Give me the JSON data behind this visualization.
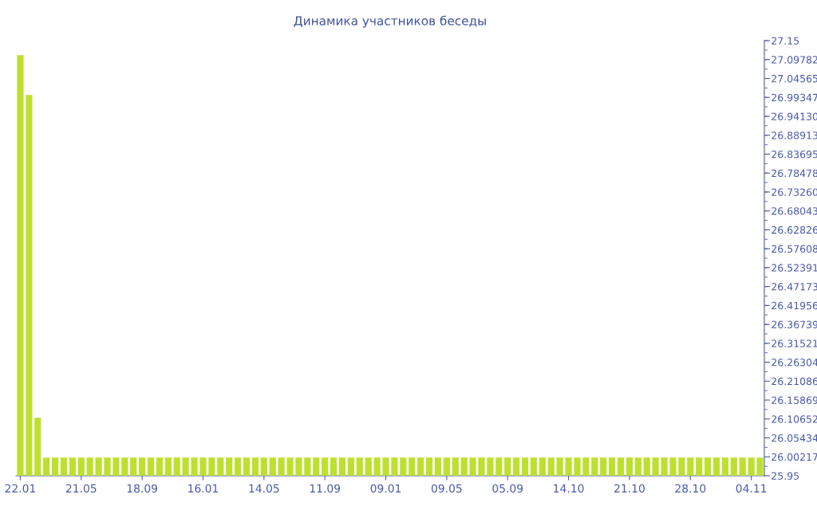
{
  "chart_data": {
    "type": "bar",
    "title": "Динамика участников беседы",
    "categories": [
      "22.01",
      null,
      null,
      null,
      null,
      null,
      null,
      "21.05",
      null,
      null,
      null,
      null,
      null,
      null,
      "18.09",
      null,
      null,
      null,
      null,
      null,
      null,
      "16.01",
      null,
      null,
      null,
      null,
      null,
      null,
      "14.05",
      null,
      null,
      null,
      null,
      null,
      null,
      "11.09",
      null,
      null,
      null,
      null,
      null,
      null,
      "09.01",
      null,
      null,
      null,
      null,
      null,
      null,
      "09.05",
      null,
      null,
      null,
      null,
      null,
      null,
      "05.09",
      null,
      null,
      null,
      null,
      null,
      null,
      "14.10",
      null,
      null,
      null,
      null,
      null,
      null,
      "21.10",
      null,
      null,
      null,
      null,
      null,
      null,
      "28.10",
      null,
      null,
      null,
      null,
      null,
      null,
      "04.11",
      null
    ],
    "values": [
      27.11,
      27.0,
      26.11,
      26.0,
      26.0,
      26.0,
      26.0,
      26.0,
      26.0,
      26.0,
      26.0,
      26.0,
      26.0,
      26.0,
      26.0,
      26.0,
      26.0,
      26.0,
      26.0,
      26.0,
      26.0,
      26.0,
      26.0,
      26.0,
      26.0,
      26.0,
      26.0,
      26.0,
      26.0,
      26.0,
      26.0,
      26.0,
      26.0,
      26.0,
      26.0,
      26.0,
      26.0,
      26.0,
      26.0,
      26.0,
      26.0,
      26.0,
      26.0,
      26.0,
      26.0,
      26.0,
      26.0,
      26.0,
      26.0,
      26.0,
      26.0,
      26.0,
      26.0,
      26.0,
      26.0,
      26.0,
      26.0,
      26.0,
      26.0,
      26.0,
      26.0,
      26.0,
      26.0,
      26.0,
      26.0,
      26.0,
      26.0,
      26.0,
      26.0,
      26.0,
      26.0,
      26.0,
      26.0,
      26.0,
      26.0,
      26.0,
      26.0,
      26.0,
      26.0,
      26.0,
      26.0,
      26.0,
      26.0,
      26.0,
      26.0,
      26.0
    ],
    "color": "#bde02f",
    "ylim": [
      25.95,
      27.15
    ],
    "yticks": [
      25.95,
      26.00217,
      26.05434,
      26.10652,
      26.15869,
      26.21086,
      26.26304,
      26.31521,
      26.36739,
      26.41956,
      26.47173,
      26.52391,
      26.57608,
      26.62826,
      26.68043,
      {
        "value": 26.7326,
        "label": "26.73260"
      },
      26.78478,
      26.83695,
      26.88913,
      {
        "value": 26.9413,
        "label": "26.94130"
      },
      26.99347,
      27.04565,
      27.09782,
      27.15
    ]
  }
}
